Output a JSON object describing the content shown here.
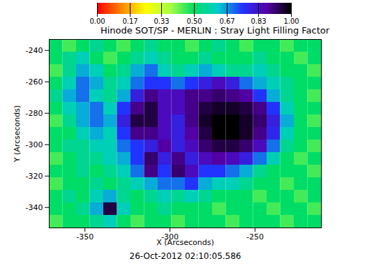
{
  "chart_data": {
    "type": "heatmap",
    "title": "Hinode SOT/SP - MERLIN : Stray Light Filling Factor",
    "xlabel": "X (Arcseconds)",
    "ylabel": "Y (Arcseconds)",
    "annotations": [
      "26-Oct-2012 02:10:05.586"
    ],
    "xlim": [
      -371,
      -211
    ],
    "ylim": [
      -353,
      -233
    ],
    "xticks": [
      -350,
      -300,
      -250
    ],
    "yticks": [
      -340,
      -320,
      -300,
      -280,
      -260,
      -240
    ],
    "x": [
      -367,
      -359,
      -351,
      -343,
      -335,
      -327,
      -319,
      -311,
      -303,
      -295,
      -287,
      -279,
      -271,
      -263,
      -255,
      -247,
      -239,
      -231,
      -223,
      -215
    ],
    "y": [
      -237,
      -245,
      -253,
      -261,
      -269,
      -277,
      -285,
      -293,
      -301,
      -309,
      -317,
      -325,
      -333,
      -341,
      -349
    ],
    "values": [
      [
        0.5,
        0.45,
        0.5,
        0.55,
        0.5,
        0.45,
        0.5,
        0.55,
        0.5,
        0.5,
        0.45,
        0.5,
        0.55,
        0.5,
        0.45,
        0.5,
        0.5,
        0.45,
        0.5,
        0.5
      ],
      [
        0.5,
        0.55,
        0.6,
        0.5,
        0.45,
        0.5,
        0.55,
        0.6,
        0.55,
        0.5,
        0.5,
        0.55,
        0.5,
        0.5,
        0.5,
        0.55,
        0.5,
        0.5,
        0.45,
        0.5
      ],
      [
        0.45,
        0.55,
        0.65,
        0.6,
        0.5,
        0.55,
        0.65,
        0.7,
        0.6,
        0.55,
        0.6,
        0.65,
        0.6,
        0.55,
        0.55,
        0.6,
        0.55,
        0.5,
        0.5,
        0.45
      ],
      [
        0.5,
        0.6,
        0.7,
        0.65,
        0.55,
        0.6,
        0.7,
        0.75,
        0.75,
        0.7,
        0.75,
        0.8,
        0.85,
        0.8,
        0.7,
        0.65,
        0.6,
        0.55,
        0.5,
        0.5
      ],
      [
        0.55,
        0.65,
        0.7,
        0.6,
        0.55,
        0.65,
        0.8,
        0.9,
        0.85,
        0.85,
        0.9,
        0.9,
        0.92,
        0.9,
        0.88,
        0.75,
        0.65,
        0.55,
        0.5,
        0.45
      ],
      [
        0.5,
        0.6,
        0.65,
        0.7,
        0.6,
        0.75,
        0.9,
        0.95,
        0.85,
        0.85,
        0.9,
        0.95,
        0.97,
        0.97,
        0.95,
        0.9,
        0.75,
        0.6,
        0.5,
        0.5
      ],
      [
        0.45,
        0.55,
        0.65,
        0.7,
        0.65,
        0.8,
        0.95,
        0.95,
        0.85,
        0.8,
        0.9,
        0.97,
        1.0,
        1.0,
        0.97,
        0.92,
        0.8,
        0.65,
        0.5,
        0.45
      ],
      [
        0.5,
        0.5,
        0.6,
        0.65,
        0.6,
        0.75,
        0.9,
        0.9,
        0.85,
        0.8,
        0.88,
        0.95,
        1.0,
        1.0,
        0.97,
        0.9,
        0.78,
        0.6,
        0.5,
        0.5
      ],
      [
        0.5,
        0.55,
        0.55,
        0.6,
        0.6,
        0.7,
        0.75,
        0.8,
        0.88,
        0.8,
        0.85,
        0.92,
        0.95,
        0.95,
        0.92,
        0.85,
        0.7,
        0.55,
        0.5,
        0.45
      ],
      [
        0.45,
        0.5,
        0.55,
        0.55,
        0.6,
        0.65,
        0.75,
        0.92,
        0.8,
        0.9,
        0.8,
        0.85,
        0.88,
        0.85,
        0.8,
        0.7,
        0.6,
        0.5,
        0.45,
        0.5
      ],
      [
        0.5,
        0.5,
        0.55,
        0.5,
        0.55,
        0.6,
        0.7,
        0.9,
        0.75,
        0.92,
        0.85,
        0.75,
        0.75,
        0.7,
        0.65,
        0.55,
        0.5,
        0.5,
        0.5,
        0.45
      ],
      [
        0.45,
        0.5,
        0.5,
        0.55,
        0.5,
        0.55,
        0.6,
        0.65,
        0.7,
        0.7,
        0.75,
        0.65,
        0.6,
        0.6,
        0.55,
        0.5,
        0.5,
        0.45,
        0.5,
        0.5
      ],
      [
        0.5,
        0.55,
        0.5,
        0.6,
        0.65,
        0.55,
        0.5,
        0.55,
        0.6,
        0.55,
        0.6,
        0.55,
        0.5,
        0.5,
        0.5,
        0.45,
        0.5,
        0.5,
        0.45,
        0.5
      ],
      [
        0.5,
        0.5,
        0.55,
        0.65,
        0.95,
        0.6,
        0.5,
        0.5,
        0.55,
        0.5,
        0.5,
        0.5,
        0.45,
        0.5,
        0.5,
        0.5,
        0.45,
        0.5,
        0.5,
        0.45
      ],
      [
        0.45,
        0.5,
        0.5,
        0.55,
        0.6,
        0.5,
        0.45,
        0.5,
        0.5,
        0.45,
        0.5,
        0.5,
        0.5,
        0.45,
        0.5,
        0.5,
        0.5,
        0.45,
        0.5,
        0.5
      ]
    ],
    "colorbar": {
      "range": [
        0,
        1
      ],
      "ticks": [
        {
          "value": 0,
          "label": "0.00"
        },
        {
          "value": 0.17,
          "label": "0.17"
        },
        {
          "value": 0.33,
          "label": "0.33"
        },
        {
          "value": 0.5,
          "label": "0.50"
        },
        {
          "value": 0.67,
          "label": "0.67"
        },
        {
          "value": 0.83,
          "label": "0.83"
        },
        {
          "value": 1,
          "label": "1.00"
        }
      ]
    }
  }
}
